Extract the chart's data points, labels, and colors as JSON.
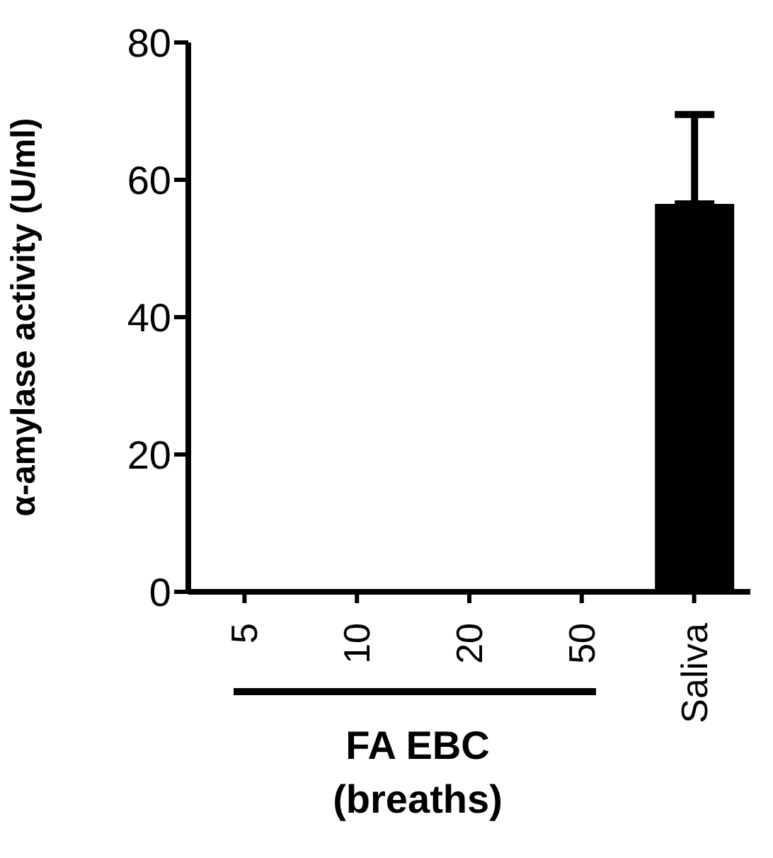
{
  "chart_data": {
    "type": "bar",
    "ylabel": "α-amylase activity (U/ml)",
    "categories": [
      "5",
      "10",
      "20",
      "50",
      "Saliva"
    ],
    "values": [
      0,
      0,
      0,
      0,
      56.5
    ],
    "color": "#000000",
    "errors": [
      null,
      null,
      null,
      null,
      [
        56.5,
        69.5
      ]
    ],
    "ylim": [
      0,
      80
    ],
    "yticks": [
      0,
      20,
      40,
      60,
      80
    ],
    "annotations": [
      "FA EBC\n(breaths)"
    ]
  }
}
